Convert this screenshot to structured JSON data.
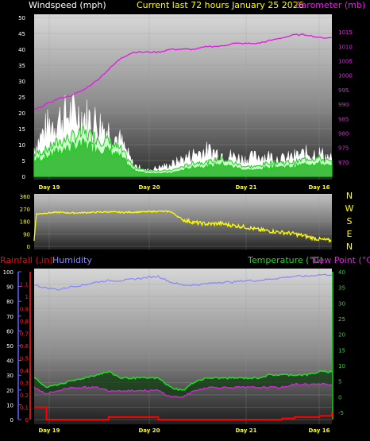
{
  "header": {
    "left": "Windspeed (mph)",
    "center": "Current last 72 hours January 25 2026",
    "right": "Barometer (mb)"
  },
  "colors": {
    "gust": "#ffffff",
    "wind": "#22cc22",
    "wind_fill": "#ccffcc",
    "barometer": "#e020e0",
    "direction": "#ffff00",
    "rain": "#ff0000",
    "humidity": "#8888ff",
    "temperature": "#22dd22",
    "dewpoint": "#e020e0",
    "title": "#ffff00"
  },
  "dates": [
    "Day 19",
    "Day 20",
    "Day 21",
    "Day 16"
  ],
  "chart_data": [
    {
      "type": "line",
      "title": "",
      "x_hours": [
        0,
        3,
        6,
        9,
        12,
        15,
        18,
        21,
        24,
        27,
        30,
        33,
        36,
        39,
        42,
        45,
        48,
        51,
        54,
        57,
        60,
        63,
        66,
        69,
        72
      ],
      "series": [
        {
          "name": "Windspeed (mph)",
          "axis": "left",
          "values": [
            5,
            6,
            8,
            9,
            10,
            9,
            8,
            6,
            2,
            1,
            1,
            1,
            2,
            3,
            3,
            4,
            3,
            2,
            2,
            3,
            3,
            3,
            4,
            4,
            3
          ]
        },
        {
          "name": "Gust",
          "axis": "left",
          "values": [
            10,
            17,
            20,
            22,
            21,
            19,
            16,
            12,
            4,
            2,
            3,
            4,
            6,
            8,
            9,
            8,
            7,
            6,
            7,
            7,
            6,
            7,
            8,
            8,
            6
          ]
        },
        {
          "name": "Barometer (mb)",
          "axis": "right",
          "values": [
            988,
            990,
            992,
            993,
            995,
            998,
            1002,
            1006,
            1008,
            1008,
            1008,
            1009,
            1009,
            1009,
            1010,
            1010,
            1011,
            1011,
            1011,
            1012,
            1013,
            1014,
            1014,
            1013,
            1013
          ]
        }
      ],
      "ylim_left": [
        0,
        50
      ],
      "yticks_left": [
        "0",
        "5",
        "10",
        "15",
        "20",
        "25",
        "30",
        "35",
        "40",
        "45",
        "50"
      ],
      "ylim_right": [
        965,
        1020
      ],
      "yticks_right": [
        "970",
        "975",
        "980",
        "985",
        "990",
        "995",
        "1000",
        "1005",
        "1010",
        "1015"
      ],
      "xlabels": [
        "Day 19",
        "Day 20",
        "Day 21",
        "Day 16"
      ],
      "grid": true
    },
    {
      "type": "line",
      "title": "",
      "x_hours": [
        0,
        3,
        6,
        9,
        12,
        15,
        18,
        21,
        24,
        27,
        30,
        33,
        36,
        39,
        42,
        45,
        48,
        51,
        54,
        57,
        60,
        63,
        66,
        69,
        72
      ],
      "series": [
        {
          "name": "Wind Direction",
          "values": [
            230,
            240,
            245,
            240,
            242,
            245,
            248,
            244,
            246,
            248,
            252,
            250,
            190,
            170,
            160,
            165,
            150,
            140,
            120,
            110,
            100,
            90,
            70,
            50,
            40
          ]
        }
      ],
      "ylim": [
        0,
        360
      ],
      "yticks": [
        "0",
        "90",
        "180",
        "270",
        "360"
      ],
      "compass": [
        "N",
        "W",
        "S",
        "E",
        "N"
      ],
      "xlabels": [
        "Day 19",
        "Day 20",
        "Day 21",
        "Day 16"
      ],
      "grid": true
    },
    {
      "type": "line",
      "title": "",
      "x_hours": [
        0,
        3,
        6,
        9,
        12,
        15,
        18,
        21,
        24,
        27,
        30,
        33,
        36,
        39,
        42,
        45,
        48,
        51,
        54,
        57,
        60,
        63,
        66,
        69,
        72
      ],
      "series": [
        {
          "name": "Rainfall (.in)",
          "axis": "rain",
          "values": [
            0.1,
            0,
            0,
            0,
            0,
            0,
            0.02,
            0.02,
            0.02,
            0.02,
            0,
            0,
            0,
            0,
            0,
            0,
            0,
            0,
            0,
            0,
            0.01,
            0.02,
            0.02,
            0.03,
            0.06
          ]
        },
        {
          "name": "Humidity",
          "axis": "humidity",
          "values": [
            91,
            89,
            88,
            90,
            91,
            93,
            94,
            94,
            95,
            96,
            97,
            93,
            91,
            91,
            92,
            93,
            93,
            94,
            94,
            95,
            96,
            97,
            97,
            98,
            98
          ]
        },
        {
          "name": "Temperature (°C)",
          "axis": "temp",
          "values": [
            6,
            3,
            4,
            5,
            6,
            7,
            8,
            6,
            6,
            6,
            6,
            3,
            2,
            5,
            6,
            6,
            6,
            6,
            6,
            7,
            7,
            7,
            7,
            8,
            8
          ]
        },
        {
          "name": "Dew Point (°C)",
          "axis": "temp",
          "values": [
            3,
            1,
            2,
            3,
            3,
            3,
            2,
            2,
            2,
            2,
            2,
            0,
            0,
            2,
            3,
            3,
            3,
            3,
            3,
            3,
            3,
            4,
            4,
            4,
            4
          ]
        }
      ],
      "ylim_rain": [
        0,
        1.2
      ],
      "yticks_rain": [
        "0",
        "0.1",
        "0.2",
        "0.3",
        "0.4",
        "0.5",
        "0.6",
        "0.7",
        "0.8",
        "0.9",
        "1",
        "1.1"
      ],
      "ylim_humidity": [
        0,
        100
      ],
      "yticks_humidity": [
        "0",
        "10",
        "20",
        "30",
        "40",
        "50",
        "60",
        "70",
        "80",
        "90",
        "100"
      ],
      "ylim_temp": [
        -5,
        40
      ],
      "yticks_temp": [
        "-5",
        "0",
        "5",
        "10",
        "15",
        "20",
        "25",
        "30",
        "35",
        "40"
      ],
      "labels": {
        "rain": "Rainfall (.in)",
        "humidity": "Humidity",
        "temp": "Temperature (°C)",
        "dew": "Dew Point (°C)"
      },
      "xlabels": [
        "Day 19",
        "Day 20",
        "Day 21",
        "Day 16"
      ],
      "grid": true
    }
  ]
}
